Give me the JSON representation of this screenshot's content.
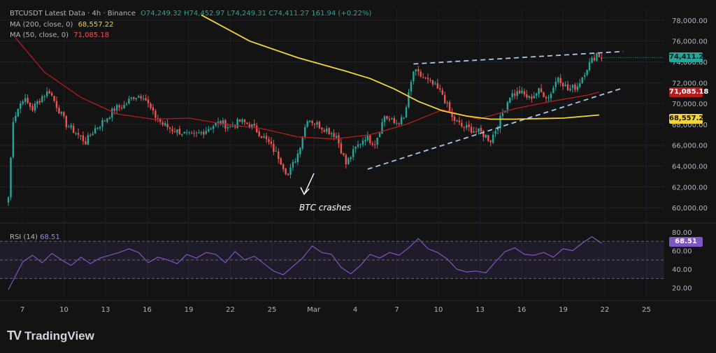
{
  "legend": {
    "symbol": "BTCUSDT Latest Data · 4h · Binance",
    "ohlc": "O74,249.32  H74,452.97  L74,249.31  C74,411.27  161.94 (+0.22%)",
    "ma200_label": "MA (200, close, 0)",
    "ma200_value": "68,557.22",
    "ma50_label": "MA (50, close, 0)",
    "ma50_value": "71,085.18",
    "rsi_label": "RSI (14)",
    "rsi_value": "68.51"
  },
  "annotation": "BTC crashes",
  "brand": "TradingView",
  "price_tags": {
    "last": "74,411.27",
    "ma50": "71,085.18",
    "ma200": "68,557.22",
    "rsi": "68.51"
  },
  "colors": {
    "up": "#26a69a",
    "down": "#ef5350",
    "ma200": "#f5d33a",
    "ma50": "#b71c1c",
    "rsi": "#7e57c2",
    "trendline": "#a5c8f0",
    "background": "#131313"
  },
  "chart_data": [
    {
      "type": "candlestick",
      "price_axis": [
        "78,000.00",
        "76,000.00",
        "74,000.00",
        "72,000.00",
        "70,000.00",
        "68,000.00",
        "66,000.00",
        "64,000.00",
        "62,000.00",
        "60,000.00"
      ],
      "ylim": [
        59000,
        79000
      ],
      "time_axis": [
        "7",
        "10",
        "13",
        "16",
        "19",
        "22",
        "25",
        "Mar",
        "4",
        "7",
        "10",
        "13",
        "16",
        "19",
        "22",
        "25"
      ],
      "close_path": [
        [
          0,
          61000
        ],
        [
          2,
          68500
        ],
        [
          6,
          70500
        ],
        [
          10,
          69500
        ],
        [
          14,
          70700
        ],
        [
          17,
          71200
        ],
        [
          20,
          69800
        ],
        [
          24,
          68000
        ],
        [
          28,
          67200
        ],
        [
          32,
          66300
        ],
        [
          36,
          67600
        ],
        [
          40,
          68400
        ],
        [
          44,
          69500
        ],
        [
          48,
          69800
        ],
        [
          52,
          70700
        ],
        [
          56,
          70800
        ],
        [
          60,
          69000
        ],
        [
          64,
          68000
        ],
        [
          68,
          67500
        ],
        [
          72,
          67200
        ],
        [
          76,
          66800
        ],
        [
          80,
          67200
        ],
        [
          84,
          67800
        ],
        [
          88,
          68200
        ],
        [
          92,
          67700
        ],
        [
          96,
          68300
        ],
        [
          100,
          68000
        ],
        [
          104,
          67200
        ],
        [
          108,
          66200
        ],
        [
          112,
          64900
        ],
        [
          116,
          63100
        ],
        [
          120,
          65200
        ],
        [
          124,
          68600
        ],
        [
          128,
          68000
        ],
        [
          132,
          67500
        ],
        [
          136,
          66900
        ],
        [
          140,
          64200
        ],
        [
          144,
          65700
        ],
        [
          148,
          66800
        ],
        [
          152,
          66200
        ],
        [
          156,
          68800
        ],
        [
          160,
          68100
        ],
        [
          164,
          68500
        ],
        [
          168,
          73100
        ],
        [
          172,
          72500
        ],
        [
          176,
          71800
        ],
        [
          180,
          70900
        ],
        [
          184,
          68600
        ],
        [
          188,
          67800
        ],
        [
          192,
          67500
        ],
        [
          196,
          67200
        ],
        [
          200,
          66500
        ],
        [
          204,
          68500
        ],
        [
          208,
          70800
        ],
        [
          212,
          71100
        ],
        [
          216,
          70500
        ],
        [
          220,
          71200
        ],
        [
          224,
          70600
        ],
        [
          228,
          72600
        ],
        [
          232,
          71300
        ],
        [
          236,
          71700
        ],
        [
          240,
          73500
        ],
        [
          244,
          74800
        ],
        [
          246,
          74400
        ]
      ],
      "trendlines": [
        {
          "from": [
            149,
            63700
          ],
          "to": [
            255,
            71500
          ]
        },
        {
          "from": [
            168,
            73800
          ],
          "to": [
            255,
            75000
          ]
        }
      ],
      "ma200": [
        [
          80,
          78500
        ],
        [
          100,
          76000
        ],
        [
          120,
          74400
        ],
        [
          140,
          73100
        ],
        [
          150,
          72400
        ],
        [
          160,
          71400
        ],
        [
          170,
          70200
        ],
        [
          180,
          69300
        ],
        [
          190,
          68800
        ],
        [
          200,
          68500
        ],
        [
          210,
          68500
        ],
        [
          220,
          68550
        ],
        [
          230,
          68600
        ],
        [
          240,
          68800
        ],
        [
          245,
          68900
        ]
      ],
      "ma50": [
        [
          3,
          76300
        ],
        [
          15,
          73000
        ],
        [
          30,
          70600
        ],
        [
          45,
          69000
        ],
        [
          60,
          68500
        ],
        [
          75,
          68600
        ],
        [
          90,
          68000
        ],
        [
          105,
          67600
        ],
        [
          120,
          66800
        ],
        [
          135,
          66600
        ],
        [
          150,
          67000
        ],
        [
          165,
          68000
        ],
        [
          180,
          69400
        ],
        [
          195,
          68500
        ],
        [
          210,
          69500
        ],
        [
          225,
          70200
        ],
        [
          240,
          70800
        ],
        [
          245,
          71100
        ]
      ]
    },
    {
      "type": "line",
      "name": "RSI (14)",
      "yticks": [
        "80.00",
        "60.00",
        "40.00",
        "20.00"
      ],
      "ylim": [
        10,
        86
      ],
      "bands": [
        70,
        50,
        30
      ],
      "values": [
        [
          0,
          18
        ],
        [
          3,
          33
        ],
        [
          6,
          48
        ],
        [
          10,
          55
        ],
        [
          14,
          47
        ],
        [
          18,
          57
        ],
        [
          22,
          50
        ],
        [
          26,
          44
        ],
        [
          30,
          53
        ],
        [
          34,
          46
        ],
        [
          38,
          52
        ],
        [
          42,
          55
        ],
        [
          46,
          58
        ],
        [
          50,
          62
        ],
        [
          54,
          58
        ],
        [
          58,
          47
        ],
        [
          62,
          53
        ],
        [
          66,
          50
        ],
        [
          70,
          46
        ],
        [
          74,
          56
        ],
        [
          78,
          52
        ],
        [
          82,
          58
        ],
        [
          86,
          56
        ],
        [
          90,
          47
        ],
        [
          94,
          59
        ],
        [
          98,
          50
        ],
        [
          102,
          54
        ],
        [
          106,
          46
        ],
        [
          110,
          38
        ],
        [
          114,
          34
        ],
        [
          118,
          43
        ],
        [
          122,
          52
        ],
        [
          126,
          65
        ],
        [
          130,
          58
        ],
        [
          134,
          56
        ],
        [
          138,
          42
        ],
        [
          142,
          35
        ],
        [
          146,
          44
        ],
        [
          150,
          56
        ],
        [
          154,
          52
        ],
        [
          158,
          58
        ],
        [
          162,
          55
        ],
        [
          166,
          63
        ],
        [
          170,
          73
        ],
        [
          174,
          62
        ],
        [
          178,
          58
        ],
        [
          182,
          51
        ],
        [
          186,
          40
        ],
        [
          190,
          37
        ],
        [
          194,
          38
        ],
        [
          198,
          36
        ],
        [
          202,
          48
        ],
        [
          206,
          59
        ],
        [
          210,
          63
        ],
        [
          214,
          56
        ],
        [
          218,
          55
        ],
        [
          222,
          58
        ],
        [
          226,
          53
        ],
        [
          230,
          62
        ],
        [
          234,
          60
        ],
        [
          238,
          68
        ],
        [
          242,
          75
        ],
        [
          246,
          68
        ]
      ]
    }
  ]
}
